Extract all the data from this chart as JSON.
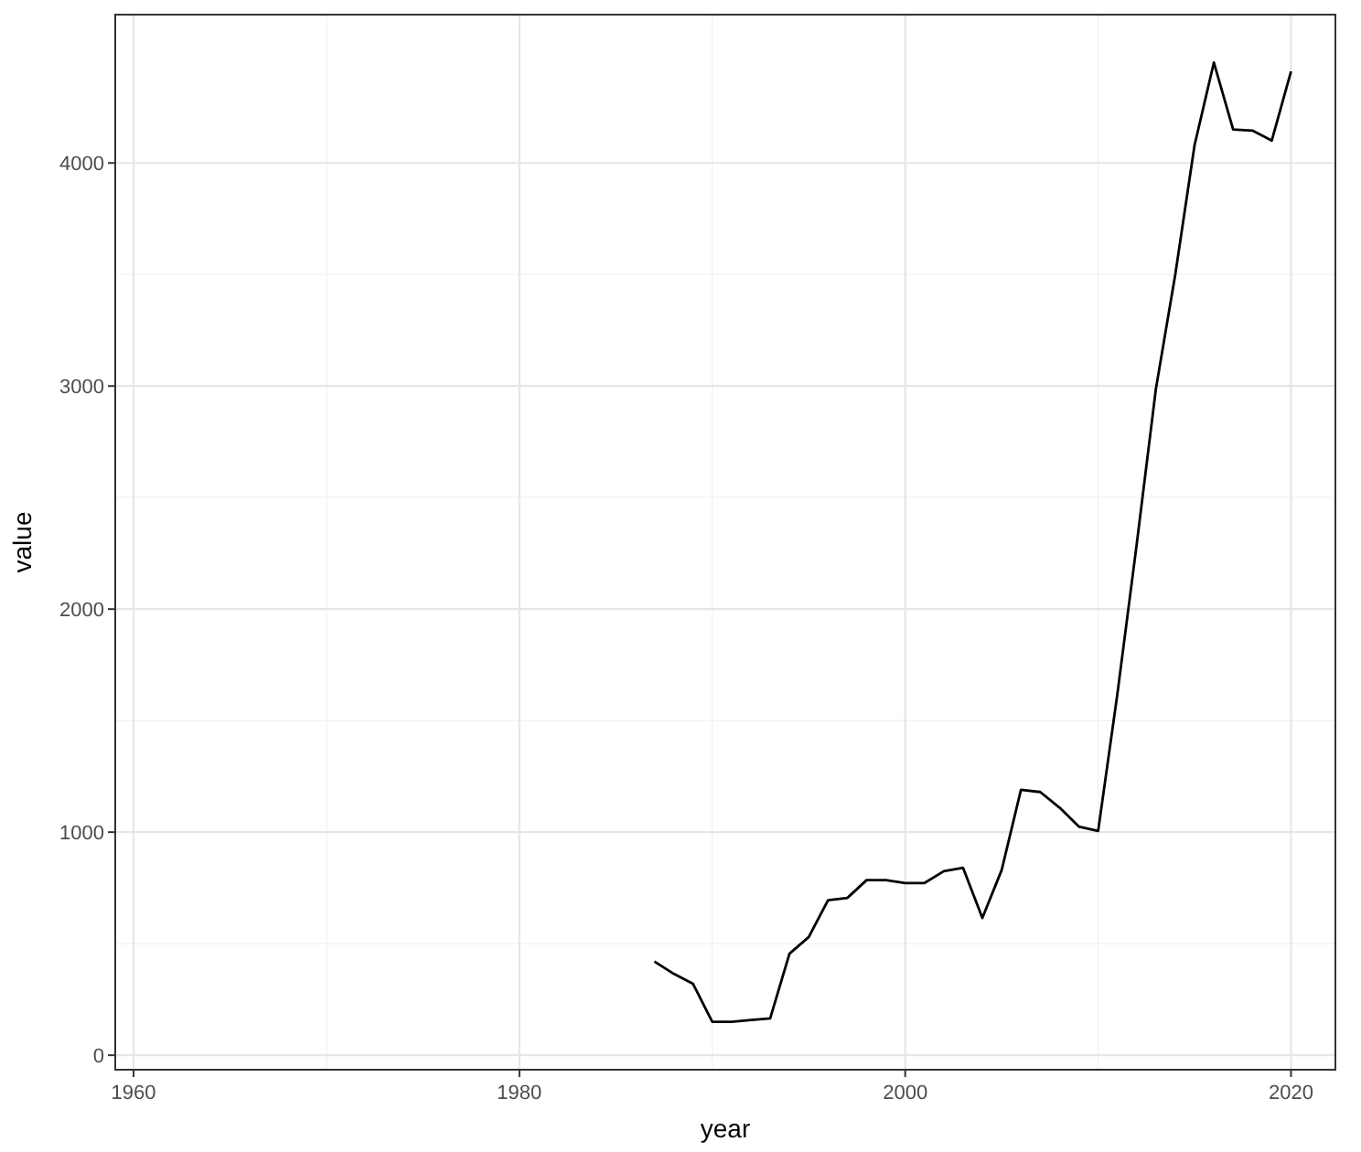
{
  "chart_data": {
    "type": "line",
    "xlabel": "year",
    "ylabel": "value",
    "x": [
      1987,
      1988,
      1989,
      1990,
      1991,
      1992,
      1993,
      1994,
      1995,
      1996,
      1997,
      1998,
      1999,
      2000,
      2001,
      2002,
      2003,
      2004,
      2005,
      2006,
      2007,
      2008,
      2009,
      2010,
      2011,
      2012,
      2013,
      2014,
      2015,
      2016,
      2017,
      2018,
      2019,
      2020
    ],
    "series": [
      {
        "color": "#000000",
        "values": [
          420,
          365,
          320,
          150,
          150,
          158,
          165,
          455,
          530,
          695,
          705,
          785,
          785,
          772,
          772,
          825,
          840,
          615,
          830,
          1190,
          1180,
          1110,
          1025,
          1005,
          1620,
          2290,
          2990,
          3500,
          4080,
          4450,
          4150,
          4145,
          4100,
          4410
        ]
      }
    ],
    "xlim": [
      1959.05,
      2022.3
    ],
    "ylim": [
      -65,
      4665
    ],
    "xticks": [
      1960,
      1980,
      2000,
      2020
    ],
    "yticks": [
      0,
      1000,
      2000,
      3000,
      4000
    ],
    "grid": true
  }
}
